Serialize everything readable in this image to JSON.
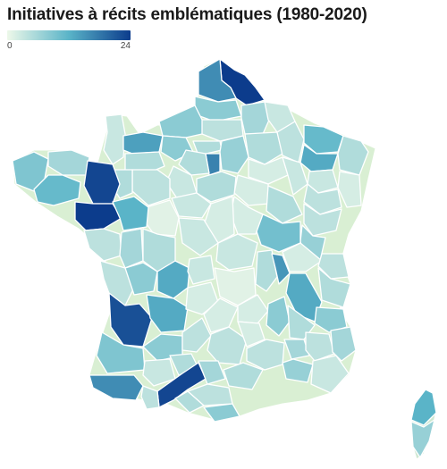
{
  "title": "Initiatives à récits emblématiques (1980-2020)",
  "legend": {
    "min_label": "0",
    "max_label": "24",
    "min_value": 0,
    "max_value": 24,
    "color_low": "#edf8e9",
    "color_mid": "#5ab4c8",
    "color_high": "#0c3c8c"
  }
}
